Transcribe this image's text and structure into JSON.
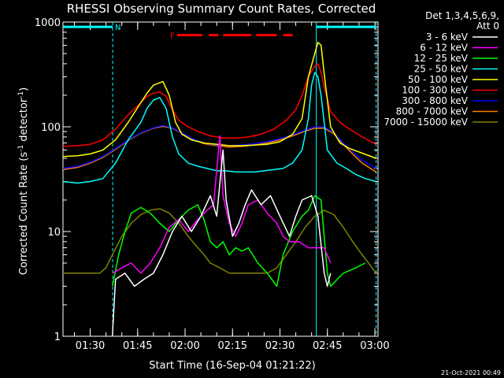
{
  "chart_data": {
    "type": "line",
    "title": "RHESSI Observing Summary Count Rates, Corrected",
    "xlabel": "Start Time (16-Sep-04 01:21:22)",
    "ylabel_main": "Corrected Count Rate (s",
    "ylabel_sup1": "-1",
    "ylabel_mid": " detector",
    "ylabel_sup2": "-1",
    "ylabel_end": ")",
    "ylog": true,
    "ylim": [
      1,
      1000
    ],
    "xlim_minutes": [
      81.4,
      181
    ],
    "yticks": [
      {
        "v": 1,
        "label": "1"
      },
      {
        "v": 10,
        "label": "10"
      },
      {
        "v": 100,
        "label": "100"
      },
      {
        "v": 1000,
        "label": "1000"
      }
    ],
    "xticks": [
      {
        "m": 90,
        "label": "01:30"
      },
      {
        "m": 105,
        "label": "01:45"
      },
      {
        "m": 120,
        "label": "02:00"
      },
      {
        "m": 135,
        "label": "02:15"
      },
      {
        "m": 150,
        "label": "02:30"
      },
      {
        "m": 165,
        "label": "02:45"
      },
      {
        "m": 180,
        "label": "03:00"
      }
    ],
    "legend_header": [
      "Det 1,3,4,5,6,9,",
      "Att 0"
    ],
    "legend_placement": "right",
    "footer_date": "21-Oct-2021 00:49",
    "flags": [
      {
        "label": "N",
        "color": "#00ffff",
        "segments": [
          [
            81.4,
            97.1
          ],
          [
            161.5,
            180.4
          ]
        ],
        "y": 900
      },
      {
        "label": "F",
        "color": "#ff0000",
        "segments": [
          [
            117.5,
            125.5
          ],
          [
            127.5,
            130.5
          ],
          [
            132,
            141
          ],
          [
            142.5,
            149
          ],
          [
            151,
            154
          ]
        ],
        "y": 750
      }
    ],
    "vlines": [
      {
        "m": 97.1,
        "color": "#00ffff",
        "dashed": true
      },
      {
        "m": 161.5,
        "color": "#00ffff",
        "dashed": false
      },
      {
        "m": 180.4,
        "color": "#00ffff",
        "dashed": true
      }
    ],
    "series": [
      {
        "name": "3 - 6 keV",
        "color": "#ffffff",
        "points": [
          [
            97,
            1
          ],
          [
            98,
            3.5
          ],
          [
            101,
            4
          ],
          [
            104,
            3
          ],
          [
            107,
            3.5
          ],
          [
            110,
            4
          ],
          [
            113,
            6
          ],
          [
            116,
            10
          ],
          [
            119,
            14
          ],
          [
            122,
            10
          ],
          [
            125,
            14
          ],
          [
            128,
            22
          ],
          [
            130,
            14
          ],
          [
            132,
            60
          ],
          [
            133,
            20
          ],
          [
            135,
            9
          ],
          [
            137,
            12
          ],
          [
            139,
            18
          ],
          [
            141,
            25
          ],
          [
            144,
            18
          ],
          [
            147,
            22
          ],
          [
            150,
            14
          ],
          [
            153,
            9
          ],
          [
            155,
            14
          ],
          [
            157,
            20
          ],
          [
            160,
            22
          ],
          [
            162,
            14
          ],
          [
            164,
            4
          ],
          [
            165,
            3
          ],
          [
            166,
            4
          ]
        ]
      },
      {
        "name": "6 - 12 keV",
        "color": "#ff00ff",
        "points": [
          [
            97,
            4
          ],
          [
            100,
            4.5
          ],
          [
            103,
            5
          ],
          [
            106,
            4
          ],
          [
            109,
            5
          ],
          [
            112,
            7
          ],
          [
            115,
            11
          ],
          [
            118,
            13
          ],
          [
            121,
            10
          ],
          [
            124,
            13
          ],
          [
            127,
            16
          ],
          [
            129,
            18
          ],
          [
            131,
            82
          ],
          [
            132,
            22
          ],
          [
            134,
            12
          ],
          [
            136,
            9
          ],
          [
            138,
            12
          ],
          [
            140,
            18
          ],
          [
            143,
            20
          ],
          [
            146,
            15
          ],
          [
            149,
            12
          ],
          [
            151,
            9
          ],
          [
            153,
            8
          ],
          [
            156,
            8
          ],
          [
            159,
            7
          ],
          [
            161,
            7
          ],
          [
            164,
            7
          ],
          [
            166,
            5
          ]
        ]
      },
      {
        "name": "12 - 25 keV",
        "color": "#00ff00",
        "points": [
          [
            97,
            3
          ],
          [
            99,
            6
          ],
          [
            101,
            10
          ],
          [
            103,
            15
          ],
          [
            106,
            17
          ],
          [
            109,
            15
          ],
          [
            112,
            12
          ],
          [
            115,
            10
          ],
          [
            118,
            13
          ],
          [
            121,
            16
          ],
          [
            124,
            18
          ],
          [
            126,
            13
          ],
          [
            128,
            8
          ],
          [
            130,
            7
          ],
          [
            132,
            8
          ],
          [
            134,
            6
          ],
          [
            136,
            7
          ],
          [
            138,
            6.5
          ],
          [
            140,
            7
          ],
          [
            143,
            5
          ],
          [
            146,
            4
          ],
          [
            149,
            3
          ],
          [
            151,
            6
          ],
          [
            154,
            10
          ],
          [
            157,
            14
          ],
          [
            159,
            16
          ],
          [
            161,
            22
          ],
          [
            163,
            20
          ],
          [
            165,
            4
          ],
          [
            166,
            3
          ],
          [
            170,
            4
          ],
          [
            174,
            4.5
          ],
          [
            177,
            5
          ]
        ]
      },
      {
        "name": "25 - 50 keV",
        "color": "#00ffff",
        "points": [
          [
            81.4,
            30
          ],
          [
            86,
            29
          ],
          [
            90,
            30
          ],
          [
            94,
            32
          ],
          [
            98,
            45
          ],
          [
            102,
            75
          ],
          [
            106,
            110
          ],
          [
            108,
            150
          ],
          [
            110,
            180
          ],
          [
            112,
            190
          ],
          [
            114,
            150
          ],
          [
            116,
            80
          ],
          [
            118,
            55
          ],
          [
            121,
            45
          ],
          [
            124,
            42
          ],
          [
            127,
            40
          ],
          [
            130,
            38
          ],
          [
            133,
            38
          ],
          [
            136,
            37
          ],
          [
            139,
            37
          ],
          [
            142,
            37
          ],
          [
            145,
            38
          ],
          [
            148,
            39
          ],
          [
            151,
            40
          ],
          [
            154,
            45
          ],
          [
            157,
            60
          ],
          [
            159,
            120
          ],
          [
            160,
            250
          ],
          [
            161,
            330
          ],
          [
            162,
            300
          ],
          [
            163,
            200
          ],
          [
            165,
            60
          ],
          [
            168,
            45
          ],
          [
            171,
            40
          ],
          [
            174,
            35
          ],
          [
            177,
            32
          ],
          [
            180.4,
            30
          ]
        ]
      },
      {
        "name": "50 - 100 keV",
        "color": "#ffff00",
        "points": [
          [
            81.4,
            52
          ],
          [
            86,
            53
          ],
          [
            90,
            55
          ],
          [
            94,
            60
          ],
          [
            98,
            75
          ],
          [
            102,
            110
          ],
          [
            106,
            170
          ],
          [
            108,
            210
          ],
          [
            110,
            250
          ],
          [
            113,
            270
          ],
          [
            115,
            200
          ],
          [
            117,
            110
          ],
          [
            119,
            85
          ],
          [
            122,
            75
          ],
          [
            126,
            70
          ],
          [
            130,
            68
          ],
          [
            134,
            66
          ],
          [
            138,
            66
          ],
          [
            142,
            67
          ],
          [
            146,
            68
          ],
          [
            150,
            72
          ],
          [
            154,
            85
          ],
          [
            157,
            120
          ],
          [
            159,
            300
          ],
          [
            161,
            500
          ],
          [
            162,
            640
          ],
          [
            163,
            600
          ],
          [
            164,
            320
          ],
          [
            166,
            100
          ],
          [
            169,
            70
          ],
          [
            172,
            62
          ],
          [
            176,
            56
          ],
          [
            180.4,
            50
          ]
        ]
      },
      {
        "name": "100 - 300 keV",
        "color": "#ff0000",
        "points": [
          [
            81.4,
            65
          ],
          [
            86,
            66
          ],
          [
            90,
            68
          ],
          [
            94,
            75
          ],
          [
            98,
            95
          ],
          [
            102,
            130
          ],
          [
            106,
            170
          ],
          [
            108,
            195
          ],
          [
            110,
            210
          ],
          [
            112,
            215
          ],
          [
            114,
            195
          ],
          [
            116,
            145
          ],
          [
            118,
            115
          ],
          [
            121,
            100
          ],
          [
            124,
            90
          ],
          [
            128,
            82
          ],
          [
            132,
            78
          ],
          [
            136,
            78
          ],
          [
            140,
            80
          ],
          [
            144,
            85
          ],
          [
            148,
            95
          ],
          [
            152,
            115
          ],
          [
            155,
            145
          ],
          [
            157,
            200
          ],
          [
            159,
            300
          ],
          [
            161,
            380
          ],
          [
            162,
            400
          ],
          [
            163,
            330
          ],
          [
            164,
            240
          ],
          [
            166,
            140
          ],
          [
            169,
            110
          ],
          [
            172,
            95
          ],
          [
            176,
            80
          ],
          [
            180.4,
            68
          ]
        ]
      },
      {
        "name": "300 - 800 keV",
        "color": "#0000ff",
        "points": [
          [
            81.4,
            40
          ],
          [
            86,
            42
          ],
          [
            90,
            46
          ],
          [
            94,
            52
          ],
          [
            98,
            62
          ],
          [
            102,
            75
          ],
          [
            106,
            88
          ],
          [
            110,
            98
          ],
          [
            113,
            103
          ],
          [
            116,
            98
          ],
          [
            119,
            88
          ],
          [
            122,
            78
          ],
          [
            126,
            70
          ],
          [
            130,
            67
          ],
          [
            134,
            66
          ],
          [
            138,
            67
          ],
          [
            142,
            69
          ],
          [
            146,
            72
          ],
          [
            150,
            77
          ],
          [
            154,
            84
          ],
          [
            158,
            93
          ],
          [
            161,
            100
          ],
          [
            164,
            100
          ],
          [
            167,
            88
          ],
          [
            170,
            70
          ],
          [
            173,
            58
          ],
          [
            176,
            48
          ],
          [
            180.4,
            40
          ]
        ]
      },
      {
        "name": "800 - 7000 keV",
        "color": "#ff8000",
        "points": [
          [
            81.4,
            39
          ],
          [
            86,
            41
          ],
          [
            90,
            45
          ],
          [
            94,
            51
          ],
          [
            98,
            61
          ],
          [
            102,
            74
          ],
          [
            106,
            87
          ],
          [
            110,
            97
          ],
          [
            113,
            101
          ],
          [
            116,
            97
          ],
          [
            119,
            87
          ],
          [
            122,
            77
          ],
          [
            126,
            69
          ],
          [
            130,
            66
          ],
          [
            134,
            64
          ],
          [
            138,
            65
          ],
          [
            142,
            67
          ],
          [
            146,
            70
          ],
          [
            150,
            75
          ],
          [
            154,
            82
          ],
          [
            158,
            91
          ],
          [
            161,
            97
          ],
          [
            164,
            97
          ],
          [
            167,
            86
          ],
          [
            170,
            68
          ],
          [
            173,
            55
          ],
          [
            176,
            45
          ],
          [
            180.4,
            37
          ]
        ]
      },
      {
        "name": "7000 - 15000 keV",
        "color": "#808000",
        "points": [
          [
            81.4,
            4
          ],
          [
            86,
            4
          ],
          [
            90,
            4
          ],
          [
            93,
            4
          ],
          [
            95,
            4.5
          ],
          [
            97,
            6
          ],
          [
            100,
            9
          ],
          [
            103,
            12
          ],
          [
            106,
            14.5
          ],
          [
            109,
            16
          ],
          [
            112,
            16.5
          ],
          [
            115,
            15
          ],
          [
            118,
            12
          ],
          [
            121,
            9
          ],
          [
            124,
            7
          ],
          [
            126,
            6
          ],
          [
            128,
            5
          ],
          [
            131,
            4.5
          ],
          [
            134,
            4
          ],
          [
            138,
            4
          ],
          [
            142,
            4
          ],
          [
            146,
            4
          ],
          [
            149,
            4.5
          ],
          [
            152,
            6
          ],
          [
            155,
            8
          ],
          [
            158,
            11
          ],
          [
            161,
            14
          ],
          [
            164,
            16
          ],
          [
            167,
            14.5
          ],
          [
            170,
            11
          ],
          [
            173,
            8
          ],
          [
            176,
            6
          ],
          [
            178,
            5
          ],
          [
            180.4,
            4
          ]
        ]
      }
    ]
  }
}
